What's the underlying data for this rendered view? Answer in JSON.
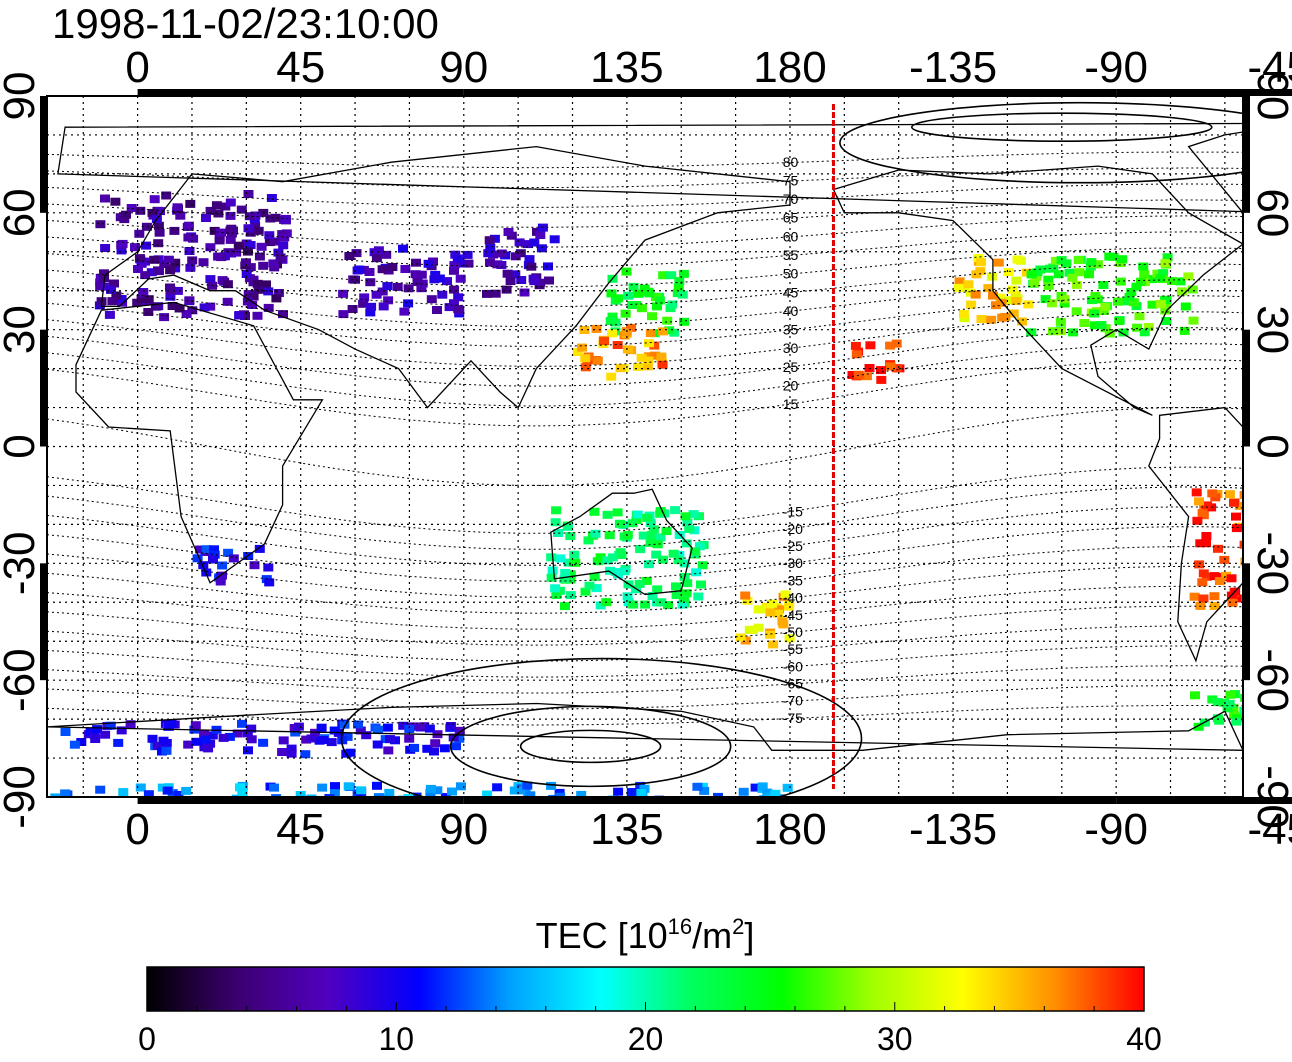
{
  "title": "1998-11-02/23:10:00",
  "map": {
    "projection": "cylindrical equidistant",
    "lon_range": [
      -25,
      305
    ],
    "lat_range": [
      -90,
      90
    ],
    "top_lon_labels": [
      "0",
      "45",
      "90",
      "135",
      "180",
      "-135",
      "-90",
      "-45"
    ],
    "bottom_lon_labels": [
      "0",
      "45",
      "90",
      "135",
      "180",
      "-135",
      "-90",
      "-45"
    ],
    "left_lat_labels": [
      "90",
      "60",
      "30",
      "0",
      "-30",
      "-60",
      "-90"
    ],
    "right_lat_labels": [
      "90",
      "60",
      "30",
      "0",
      "-30",
      "-60",
      "-90"
    ],
    "grid_lon_spacing_deg": 15,
    "grid_lat_spacing_deg": 10,
    "grid": true,
    "magnetic_latitude_labels": [
      "80",
      "75",
      "70",
      "65",
      "60",
      "55",
      "50",
      "45",
      "40",
      "35",
      "30",
      "25",
      "20",
      "15",
      "-15",
      "-20",
      "-25",
      "-30",
      "-35",
      "-40",
      "-45",
      "-50",
      "-55",
      "-60",
      "-65",
      "-70",
      "-75"
    ],
    "terminator_meridian_lon": 192,
    "colors": {
      "frame": "#000000",
      "coast": "#000000",
      "terminator": "#e00000"
    }
  },
  "colorbar": {
    "label_prefix": "TEC  [10",
    "label_sup1": "16",
    "label_mid": "/m",
    "label_sup2": "2",
    "label_suffix": "]",
    "min": 0,
    "max": 40,
    "tick_labels": [
      "0",
      "10",
      "20",
      "30",
      "40"
    ],
    "colormap": [
      "#000000",
      "#3c0070",
      "#5000c0",
      "#0000ff",
      "#00a0ff",
      "#00ffff",
      "#00ff60",
      "#00ff00",
      "#a0ff00",
      "#ffff00",
      "#ff9000",
      "#ff0000"
    ]
  },
  "chart_data": {
    "type": "heatmap",
    "title": "1998-11-02/23:10:00",
    "xlabel": "",
    "ylabel": "",
    "colorbar_label": "TEC [10^16/m^2]",
    "value_range": [
      0,
      40
    ],
    "regions": [
      {
        "lon": [
          -12,
          40
        ],
        "lat": [
          34,
          66
        ],
        "tec": 6
      },
      {
        "lon": [
          55,
          90
        ],
        "lat": [
          35,
          52
        ],
        "tec": 7
      },
      {
        "lon": [
          95,
          115
        ],
        "lat": [
          40,
          58
        ],
        "tec": 7
      },
      {
        "lon": [
          128,
          150
        ],
        "lat": [
          30,
          46
        ],
        "tec": 24
      },
      {
        "lon": [
          120,
          145
        ],
        "lat": [
          18,
          32
        ],
        "tec": 36
      },
      {
        "lon": [
          -135,
          -115
        ],
        "lat": [
          33,
          50
        ],
        "tec": 34
      },
      {
        "lon": [
          -115,
          -70
        ],
        "lat": [
          30,
          50
        ],
        "tec": 26
      },
      {
        "lon": [
          -165,
          -150
        ],
        "lat": [
          18,
          28
        ],
        "tec": 40
      },
      {
        "lon": [
          112,
          155
        ],
        "lat": [
          -40,
          -15
        ],
        "tec": 22
      },
      {
        "lon": [
          165,
          180
        ],
        "lat": [
          -50,
          -35
        ],
        "tec": 34
      },
      {
        "lon": [
          -70,
          -38
        ],
        "lat": [
          -40,
          -10
        ],
        "tec": 38
      },
      {
        "lon": [
          15,
          35
        ],
        "lat": [
          -35,
          -25
        ],
        "tec": 10
      },
      {
        "lon": [
          -25,
          90
        ],
        "lat": [
          -78,
          -70
        ],
        "tec": 10
      },
      {
        "lon": [
          -25,
          180
        ],
        "lat": [
          -90,
          -86
        ],
        "tec": 14
      },
      {
        "lon": [
          -70,
          -55
        ],
        "lat": [
          -72,
          -62
        ],
        "tec": 24
      }
    ]
  }
}
